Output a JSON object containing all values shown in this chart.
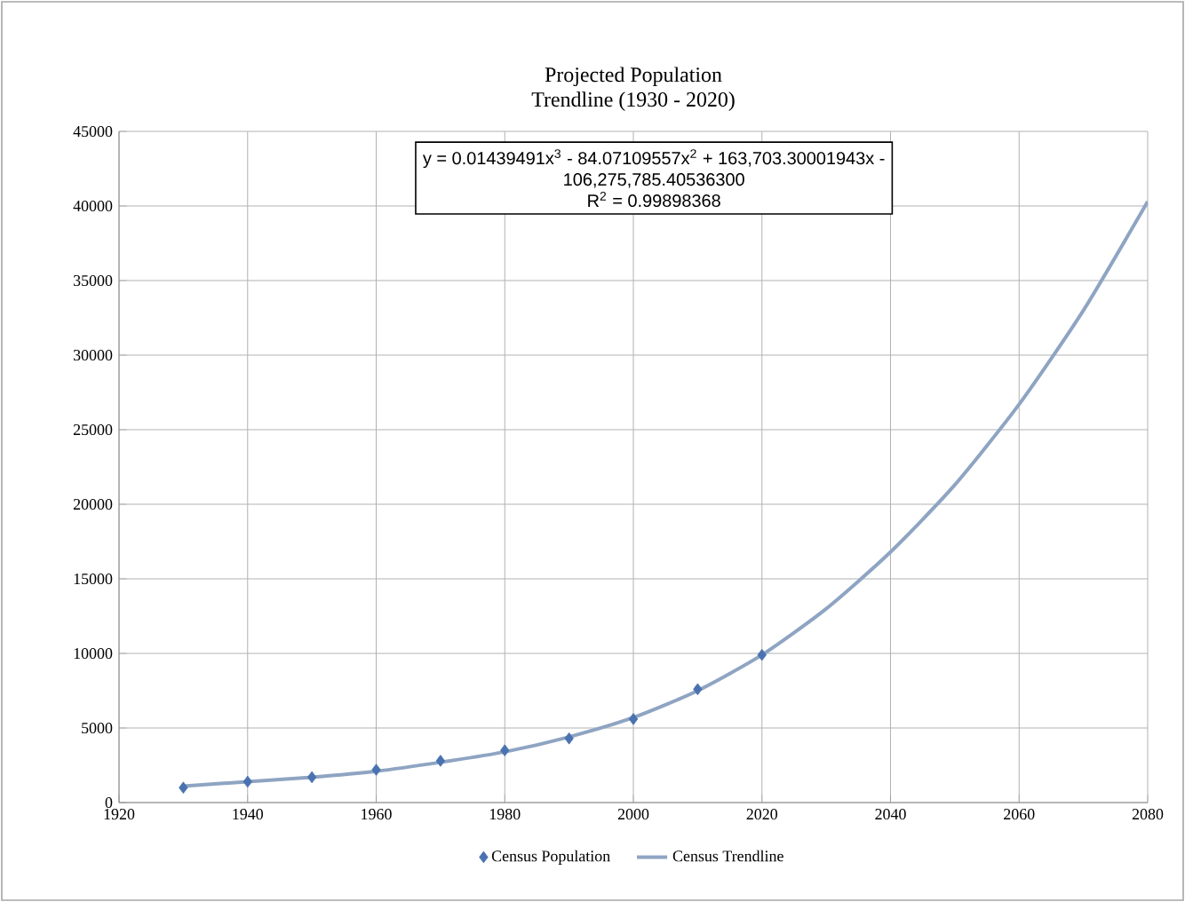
{
  "chart_data": {
    "type": "scatter",
    "title": "Projected Population\nTrendline (1930 - 2020)",
    "xlim": [
      1920,
      2080
    ],
    "xticks": [
      1920,
      1940,
      1960,
      1980,
      2000,
      2020,
      2040,
      2060,
      2080
    ],
    "ylim": [
      0,
      45000
    ],
    "yticks": [
      0,
      5000,
      10000,
      15000,
      20000,
      25000,
      30000,
      35000,
      40000,
      45000
    ],
    "grid": true,
    "legend": "bottom",
    "annotations": [
      "y = 0.01439491x$^{3}$ - 84.07109557x$^{2}$ + 163,703.30001943x -",
      "106,275,785.40536300",
      "R$^{2}$ = 0.99898368"
    ],
    "series": [
      {
        "name": "Census Population",
        "marker": "diamond",
        "color": "#4a72b0",
        "x": [
          1930,
          1940,
          1950,
          1960,
          1970,
          1980,
          1990,
          2000,
          2010,
          2020
        ],
        "values": [
          1000,
          1400,
          1700,
          2200,
          2800,
          3500,
          4300,
          5600,
          7600,
          9900
        ]
      },
      {
        "name": "Census Trendline",
        "type": "line",
        "marker": "none",
        "line_style": "solid",
        "color": "#8ea4c2",
        "x": [
          1930,
          1940,
          1950,
          1960,
          1970,
          1980,
          1990,
          2000,
          2010,
          2020,
          2030,
          2040,
          2050,
          2060,
          2070,
          2080
        ],
        "values": [
          1100,
          1400,
          1700,
          2100,
          2700,
          3400,
          4400,
          5700,
          7500,
          9900,
          13000,
          16800,
          21300,
          26700,
          33000,
          40300
        ]
      }
    ]
  }
}
